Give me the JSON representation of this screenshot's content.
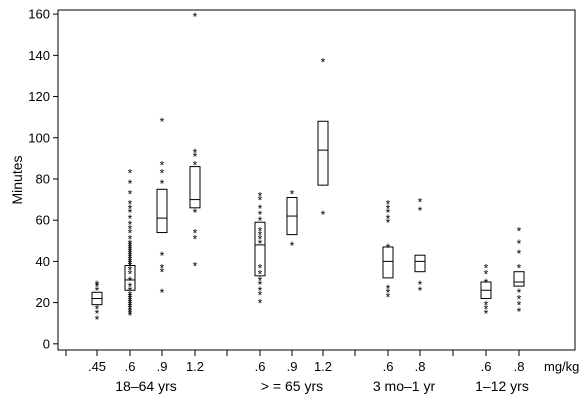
{
  "chart_data": {
    "type": "boxplot",
    "ylabel": "Minutes",
    "unit_label": "mg/kg",
    "ylim": [
      -3,
      162
    ],
    "y_ticks": [
      0,
      20,
      40,
      60,
      80,
      100,
      120,
      140,
      160
    ],
    "grid": false,
    "legend": "none",
    "groups": [
      {
        "label": "18–64 yrs",
        "dose_indices": [
          0,
          1,
          2,
          3
        ]
      },
      {
        "label": "> = 65 yrs",
        "dose_indices": [
          4,
          5,
          6
        ]
      },
      {
        "label": "3 mo–1 yr",
        "dose_indices": [
          7,
          8
        ]
      },
      {
        "label": "1–12 yrs",
        "dose_indices": [
          9,
          10
        ]
      }
    ],
    "boxes": [
      {
        "dose": ".45",
        "q1": 19,
        "median": 22,
        "q3": 25,
        "outliers": [
          13,
          16,
          18,
          27,
          29,
          30
        ]
      },
      {
        "dose": ".6",
        "q1": 26,
        "median": 31,
        "q3": 38,
        "outliers": [
          15,
          16,
          17,
          18,
          19,
          20,
          21,
          22,
          23,
          24,
          25,
          27,
          29,
          32,
          35,
          37,
          39,
          40,
          41,
          42,
          43,
          44,
          45,
          46,
          47,
          48,
          49,
          50,
          52,
          55,
          57,
          59,
          62,
          65,
          67,
          69,
          74,
          79,
          84
        ]
      },
      {
        "dose": ".9",
        "q1": 54,
        "median": 61,
        "q3": 75,
        "outliers": [
          26,
          36,
          38,
          44,
          79,
          84,
          88,
          109
        ]
      },
      {
        "dose": "1.2",
        "q1": 66,
        "median": 70,
        "q3": 86,
        "outliers": [
          39,
          52,
          55,
          65,
          88,
          92,
          94,
          160
        ]
      },
      {
        "dose": ".6",
        "q1": 33,
        "median": 48,
        "q3": 59,
        "outliers": [
          21,
          25,
          27,
          30,
          32,
          35,
          38,
          50,
          52,
          54,
          56,
          61,
          64,
          67,
          71,
          73
        ]
      },
      {
        "dose": ".9",
        "q1": 53,
        "median": 62,
        "q3": 71,
        "outliers": [
          49,
          74
        ]
      },
      {
        "dose": "1.2",
        "q1": 77,
        "median": 94,
        "q3": 108,
        "outliers": [
          64,
          138
        ]
      },
      {
        "dose": ".6",
        "q1": 32,
        "median": 40,
        "q3": 47,
        "outliers": [
          24,
          26,
          28,
          48,
          60,
          62,
          65,
          67,
          69
        ]
      },
      {
        "dose": ".8",
        "q1": 35,
        "median": 40,
        "q3": 43,
        "outliers": [
          27,
          30,
          66,
          70
        ]
      },
      {
        "dose": ".6",
        "q1": 22,
        "median": 26,
        "q3": 30,
        "outliers": [
          16,
          18,
          20,
          31,
          35,
          38
        ]
      },
      {
        "dose": ".8",
        "q1": 28,
        "median": 30,
        "q3": 35,
        "outliers": [
          17,
          20,
          23,
          26,
          38,
          45,
          50,
          56
        ]
      }
    ]
  }
}
